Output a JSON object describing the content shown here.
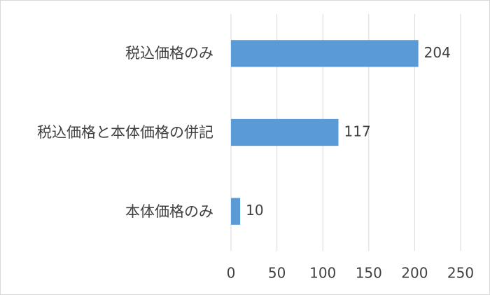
{
  "chart_data": {
    "type": "bar",
    "orientation": "horizontal",
    "categories": [
      "税込価格のみ",
      "税込価格と本体価格の併記",
      "本体価格のみ"
    ],
    "values": [
      204,
      117,
      10
    ],
    "color": "#5b9bd5",
    "xlim": [
      0,
      250
    ],
    "xticks": [
      0,
      50,
      100,
      150,
      200,
      250
    ],
    "grid": true
  }
}
